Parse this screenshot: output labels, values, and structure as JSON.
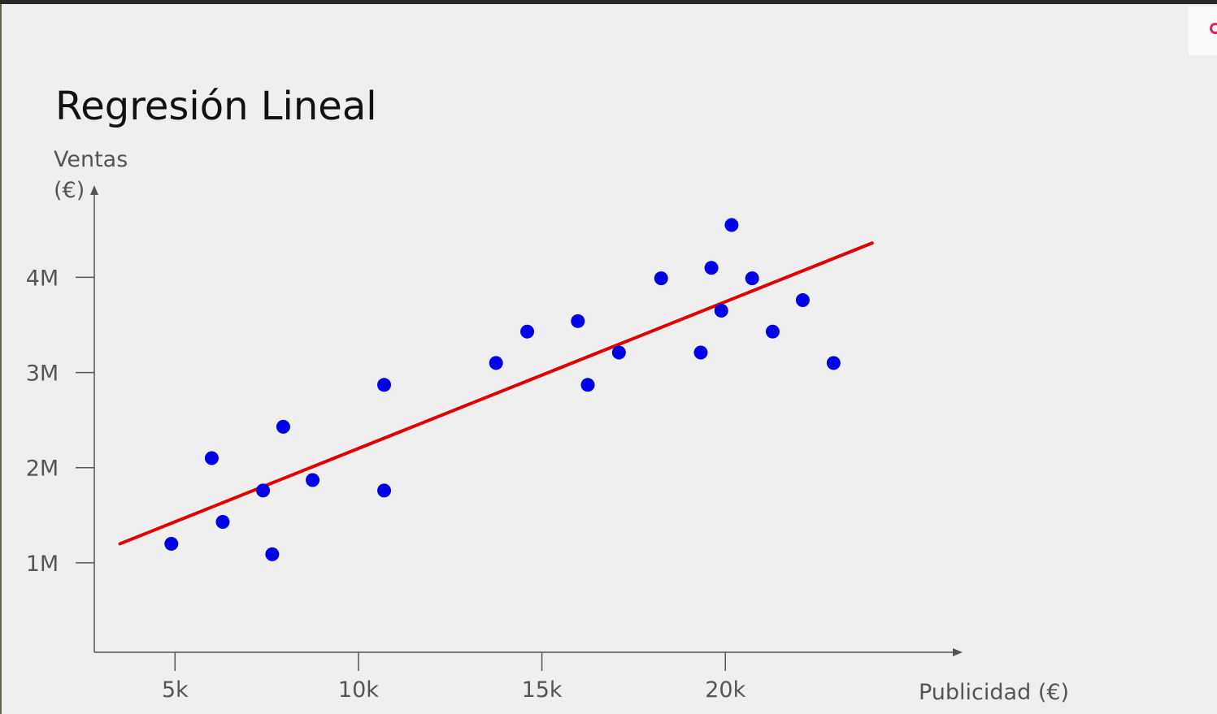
{
  "slide": {
    "title": "Regresión Lineal"
  },
  "colors": {
    "background": "#efefef",
    "points": "#0000e6",
    "regression_line": "#e00000",
    "axis": "#555555",
    "labels": "#555555",
    "corner_icon": "#e0245e"
  },
  "corner_widget": {
    "icon": "ring-icon"
  },
  "chart_data": {
    "type": "scatter",
    "title": "",
    "xlabel": "Publicidad (€)",
    "ylabel_lines": [
      "Ventas",
      "(€)"
    ],
    "xlim": [
      2800,
      26000
    ],
    "ylim": [
      0.06,
      4.9
    ],
    "x_ticks": [
      {
        "value": 5000,
        "label": "5k"
      },
      {
        "value": 10000,
        "label": "10k"
      },
      {
        "value": 15000,
        "label": "15k"
      },
      {
        "value": 20000,
        "label": "20k"
      }
    ],
    "y_ticks": [
      {
        "value": 1,
        "label": "1M"
      },
      {
        "value": 2,
        "label": "2M"
      },
      {
        "value": 3,
        "label": "3M"
      },
      {
        "value": 4,
        "label": "4M"
      }
    ],
    "grid": false,
    "legend": "none",
    "series": [
      {
        "points": [
          {
            "x": 4900,
            "y": 1.2
          },
          {
            "x": 6000,
            "y": 2.1
          },
          {
            "x": 6300,
            "y": 1.43
          },
          {
            "x": 7400,
            "y": 1.76
          },
          {
            "x": 7650,
            "y": 1.09
          },
          {
            "x": 7950,
            "y": 2.43
          },
          {
            "x": 8750,
            "y": 1.87
          },
          {
            "x": 10700,
            "y": 1.76
          },
          {
            "x": 10700,
            "y": 2.87
          },
          {
            "x": 13750,
            "y": 3.1
          },
          {
            "x": 14600,
            "y": 3.43
          },
          {
            "x": 15980,
            "y": 3.54
          },
          {
            "x": 16250,
            "y": 2.87
          },
          {
            "x": 17100,
            "y": 3.21
          },
          {
            "x": 18250,
            "y": 3.99
          },
          {
            "x": 19330,
            "y": 3.21
          },
          {
            "x": 19620,
            "y": 4.1
          },
          {
            "x": 19890,
            "y": 3.65
          },
          {
            "x": 20170,
            "y": 4.55
          },
          {
            "x": 20730,
            "y": 3.99
          },
          {
            "x": 21290,
            "y": 3.43
          },
          {
            "x": 22110,
            "y": 3.76
          },
          {
            "x": 22950,
            "y": 3.1
          }
        ]
      }
    ],
    "regression_line": {
      "from": {
        "x": 3500,
        "y": 1.2
      },
      "to": {
        "x": 24000,
        "y": 4.36
      }
    }
  }
}
